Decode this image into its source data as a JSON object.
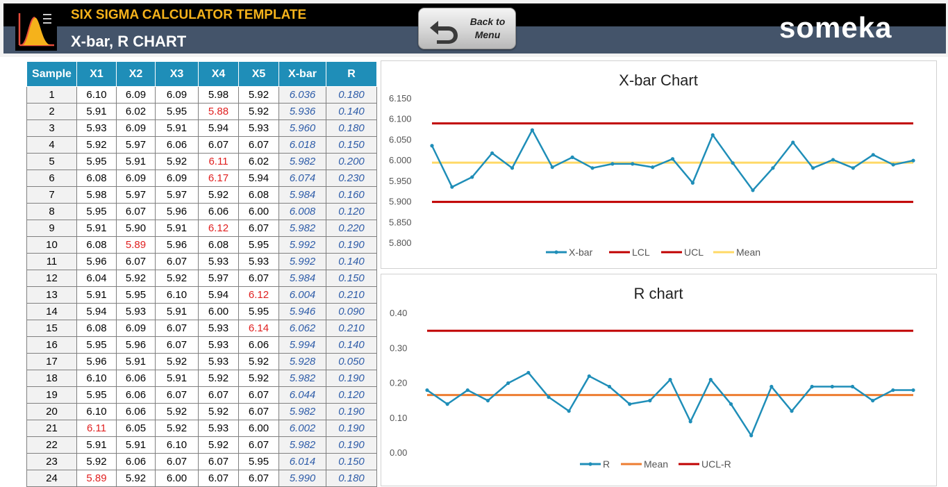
{
  "header": {
    "app_title": "SIX SIGMA CALCULATOR TEMPLATE",
    "page_title": "X-bar, R CHART",
    "back_button_label": "Back to\nMenu",
    "brand": "someka",
    "colors": {
      "top_bar": "#000000",
      "bottom_bar": "#44546a",
      "title_accent": "#f5b21b"
    }
  },
  "table": {
    "columns": [
      "Sample",
      "X1",
      "X2",
      "X3",
      "X4",
      "X5",
      "X-bar",
      "R"
    ],
    "rows": [
      [
        "1",
        "6.10",
        "6.09",
        "6.09",
        "5.98",
        "5.92",
        "6.036",
        "0.180"
      ],
      [
        "2",
        "5.91",
        "6.02",
        "5.95",
        "5.88",
        "5.92",
        "5.936",
        "0.140"
      ],
      [
        "3",
        "5.93",
        "6.09",
        "5.91",
        "5.94",
        "5.93",
        "5.960",
        "0.180"
      ],
      [
        "4",
        "5.92",
        "5.97",
        "6.06",
        "6.07",
        "6.07",
        "6.018",
        "0.150"
      ],
      [
        "5",
        "5.95",
        "5.91",
        "5.92",
        "6.11",
        "6.02",
        "5.982",
        "0.200"
      ],
      [
        "6",
        "6.08",
        "6.09",
        "6.09",
        "6.17",
        "5.94",
        "6.074",
        "0.230"
      ],
      [
        "7",
        "5.98",
        "5.97",
        "5.97",
        "5.92",
        "6.08",
        "5.984",
        "0.160"
      ],
      [
        "8",
        "5.95",
        "6.07",
        "5.96",
        "6.06",
        "6.00",
        "6.008",
        "0.120"
      ],
      [
        "9",
        "5.91",
        "5.90",
        "5.91",
        "6.12",
        "6.07",
        "5.982",
        "0.220"
      ],
      [
        "10",
        "6.08",
        "5.89",
        "5.96",
        "6.08",
        "5.95",
        "5.992",
        "0.190"
      ],
      [
        "11",
        "5.96",
        "6.07",
        "6.07",
        "5.93",
        "5.93",
        "5.992",
        "0.140"
      ],
      [
        "12",
        "6.04",
        "5.92",
        "5.92",
        "5.97",
        "6.07",
        "5.984",
        "0.150"
      ],
      [
        "13",
        "5.91",
        "5.95",
        "6.10",
        "5.94",
        "6.12",
        "6.004",
        "0.210"
      ],
      [
        "14",
        "5.94",
        "5.93",
        "5.91",
        "6.00",
        "5.95",
        "5.946",
        "0.090"
      ],
      [
        "15",
        "6.08",
        "6.09",
        "6.07",
        "5.93",
        "6.14",
        "6.062",
        "0.210"
      ],
      [
        "16",
        "5.95",
        "5.96",
        "6.07",
        "5.93",
        "6.06",
        "5.994",
        "0.140"
      ],
      [
        "17",
        "5.96",
        "5.91",
        "5.92",
        "5.93",
        "5.92",
        "5.928",
        "0.050"
      ],
      [
        "18",
        "6.10",
        "6.06",
        "5.91",
        "5.92",
        "5.92",
        "5.982",
        "0.190"
      ],
      [
        "19",
        "5.95",
        "6.06",
        "6.07",
        "6.07",
        "6.07",
        "6.044",
        "0.120"
      ],
      [
        "20",
        "6.10",
        "6.06",
        "5.92",
        "5.92",
        "6.07",
        "5.982",
        "0.190"
      ],
      [
        "21",
        "6.11",
        "6.05",
        "5.92",
        "5.93",
        "6.00",
        "6.002",
        "0.190"
      ],
      [
        "22",
        "5.91",
        "5.91",
        "6.10",
        "5.92",
        "6.07",
        "5.982",
        "0.190"
      ],
      [
        "23",
        "5.92",
        "6.06",
        "6.07",
        "6.07",
        "5.95",
        "6.014",
        "0.150"
      ],
      [
        "24",
        "5.89",
        "5.92",
        "6.00",
        "6.07",
        "6.07",
        "5.990",
        "0.180"
      ]
    ],
    "out_of_limit_cells": [
      [
        1,
        4
      ],
      [
        4,
        4
      ],
      [
        5,
        4
      ],
      [
        8,
        4
      ],
      [
        9,
        2
      ],
      [
        12,
        5
      ],
      [
        14,
        5
      ],
      [
        20,
        1
      ],
      [
        23,
        1
      ]
    ],
    "colors": {
      "header_bg": "#1f8eb8",
      "out_of_limit": "#e02020",
      "calc_text": "#2e5ca8"
    }
  },
  "chart_data": [
    {
      "type": "line",
      "title": "X-bar Chart",
      "xlabel": "",
      "ylabel": "",
      "ylim": [
        5.8,
        6.15
      ],
      "ytick_labels": [
        "6.150",
        "6.100",
        "6.050",
        "6.000",
        "5.950",
        "5.900",
        "5.850",
        "5.800"
      ],
      "yticks": [
        6.15,
        6.1,
        6.05,
        6.0,
        5.95,
        5.9,
        5.85,
        5.8
      ],
      "x": [
        1,
        2,
        3,
        4,
        5,
        6,
        7,
        8,
        9,
        10,
        11,
        12,
        13,
        14,
        15,
        16,
        17,
        18,
        19,
        20,
        21,
        22,
        23,
        24,
        25
      ],
      "series": [
        {
          "name": "X-bar",
          "color": "#1f8eb8",
          "markers": true,
          "values": [
            6.036,
            5.936,
            5.96,
            6.018,
            5.982,
            6.074,
            5.984,
            6.008,
            5.982,
            5.992,
            5.992,
            5.984,
            6.004,
            5.946,
            6.062,
            5.994,
            5.928,
            5.982,
            6.044,
            5.982,
            6.002,
            5.982,
            6.014,
            5.99,
            6.0
          ]
        },
        {
          "name": "LCL",
          "color": "#c00000",
          "constant": 5.9
        },
        {
          "name": "UCL",
          "color": "#c00000",
          "constant": 6.09
        },
        {
          "name": "Mean",
          "color": "#ffd966",
          "constant": 5.995
        }
      ],
      "legend": "bottom",
      "grid": false
    },
    {
      "type": "line",
      "title": "R chart",
      "xlabel": "",
      "ylabel": "",
      "ylim": [
        0.0,
        0.4
      ],
      "ytick_labels": [
        "0.40",
        "0.30",
        "0.20",
        "0.10",
        "0.00"
      ],
      "yticks": [
        0.4,
        0.3,
        0.2,
        0.1,
        0.0
      ],
      "x": [
        1,
        2,
        3,
        4,
        5,
        6,
        7,
        8,
        9,
        10,
        11,
        12,
        13,
        14,
        15,
        16,
        17,
        18,
        19,
        20,
        21,
        22,
        23,
        24,
        25
      ],
      "series": [
        {
          "name": "R",
          "color": "#1f8eb8",
          "markers": true,
          "values": [
            0.18,
            0.14,
            0.18,
            0.15,
            0.2,
            0.23,
            0.16,
            0.12,
            0.22,
            0.19,
            0.14,
            0.15,
            0.21,
            0.09,
            0.21,
            0.14,
            0.05,
            0.19,
            0.12,
            0.19,
            0.19,
            0.19,
            0.15,
            0.18,
            0.18
          ]
        },
        {
          "name": "Mean",
          "color": "#ed7d31",
          "constant": 0.166
        },
        {
          "name": "UCL-R",
          "color": "#c00000",
          "constant": 0.35
        }
      ],
      "legend": "bottom",
      "grid": false
    }
  ]
}
